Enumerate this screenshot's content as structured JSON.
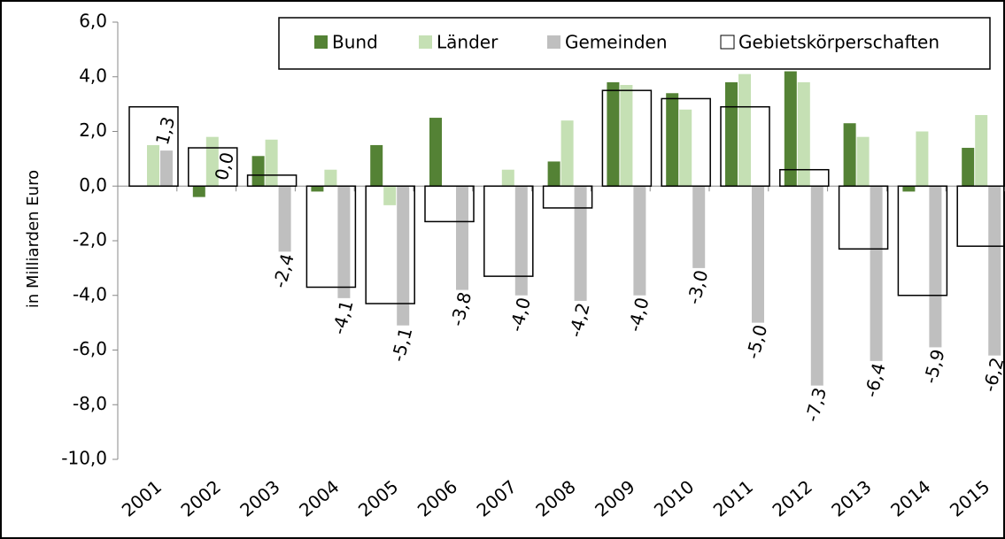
{
  "chart_data": {
    "type": "bar",
    "y_label": "in Milliarden Euro",
    "categories": [
      "2001",
      "2002",
      "2003",
      "2004",
      "2005",
      "2006",
      "2007",
      "2008",
      "2009",
      "2010",
      "2011",
      "2012",
      "2013",
      "2014",
      "2015"
    ],
    "series": [
      {
        "name": "Bund",
        "color": "#548235",
        "values": [
          0.0,
          -0.4,
          1.1,
          -0.2,
          1.5,
          2.5,
          0.0,
          0.9,
          3.8,
          3.4,
          3.8,
          4.2,
          2.3,
          -0.2,
          1.4
        ]
      },
      {
        "name": "Länder",
        "color": "#c5e0b4",
        "values": [
          1.5,
          1.8,
          1.7,
          0.6,
          -0.7,
          0.0,
          0.6,
          2.4,
          3.7,
          2.8,
          4.1,
          3.8,
          1.8,
          2.0,
          2.6
        ]
      },
      {
        "name": "Gemeinden",
        "color": "#bfbfbf",
        "values": [
          1.3,
          0.0,
          -2.4,
          -4.1,
          -5.1,
          -3.8,
          -4.0,
          -4.2,
          -4.0,
          -3.0,
          -5.0,
          -7.3,
          -6.4,
          -5.9,
          -6.2
        ],
        "value_labels": [
          "1,3",
          "0,0",
          "-2,4",
          "-4,1",
          "-5,1",
          "-3,8",
          "-4,0",
          "-4,2",
          "-4,0",
          "-3,0",
          "-5,0",
          "-7,3",
          "-6,4",
          "-5,9",
          "-6,2"
        ]
      },
      {
        "name": "Gebietskörperschaften",
        "color": "#ffffff",
        "values": [
          2.9,
          1.4,
          0.4,
          -3.7,
          -4.3,
          -1.3,
          -3.3,
          -0.8,
          3.5,
          3.2,
          2.9,
          0.6,
          -2.3,
          -4.0,
          -2.2
        ]
      }
    ],
    "ylim": [
      -10,
      6
    ],
    "yticks": [
      {
        "value": -10,
        "label": "-10,0"
      },
      {
        "value": -8,
        "label": "-8,0"
      },
      {
        "value": -6,
        "label": "-6,0"
      },
      {
        "value": -4,
        "label": "-4,0"
      },
      {
        "value": -2,
        "label": "-2,0"
      },
      {
        "value": 0,
        "label": "0,0"
      },
      {
        "value": 2,
        "label": "2,0"
      },
      {
        "value": 4,
        "label": "4,0"
      },
      {
        "value": 6,
        "label": "6,0"
      }
    ]
  }
}
